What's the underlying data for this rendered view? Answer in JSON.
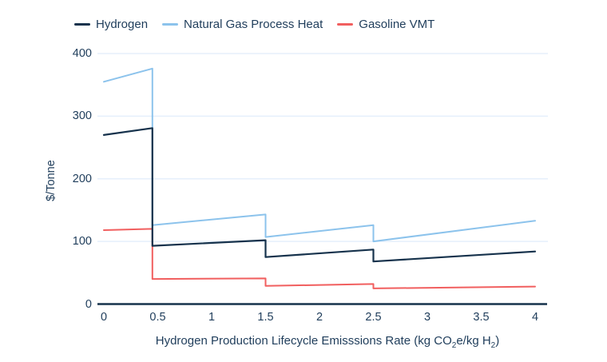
{
  "colors": {
    "text": "#1f3d5b",
    "axis": "#16324c",
    "gridline": "#e5effb",
    "background": "#ffffff"
  },
  "chart_data": {
    "type": "line",
    "title": "",
    "ylabel": "$/Tonne",
    "xlabel_parts": [
      {
        "t": "Hydrogen Production Lifecycle Emisssions Rate (kg CO"
      },
      {
        "t": "2",
        "sub": true
      },
      {
        "t": "e/kg H"
      },
      {
        "t": "2",
        "sub": true
      },
      {
        "t": ")"
      }
    ],
    "xlim": [
      0,
      4
    ],
    "ylim": [
      0,
      400
    ],
    "x_ticks": [
      {
        "v": 0,
        "label": "0"
      },
      {
        "v": 0.5,
        "label": "0.5"
      },
      {
        "v": 1,
        "label": "1"
      },
      {
        "v": 1.5,
        "label": "1.5"
      },
      {
        "v": 2,
        "label": "2"
      },
      {
        "v": 2.5,
        "label": "2.5"
      },
      {
        "v": 3,
        "label": "3"
      },
      {
        "v": 3.5,
        "label": "3.5"
      },
      {
        "v": 4,
        "label": "4"
      }
    ],
    "y_ticks": [
      {
        "v": 0,
        "label": "0"
      },
      {
        "v": 100,
        "label": "100"
      },
      {
        "v": 200,
        "label": "200"
      },
      {
        "v": 300,
        "label": "300"
      },
      {
        "v": 400,
        "label": "400"
      }
    ],
    "grid": "horizontal-only",
    "legend_position": "top-left",
    "step_thresholds": [
      0.45,
      1.5,
      2.5
    ],
    "series": [
      {
        "name": "Natural Gas Process Heat",
        "color": "#8cc3ec",
        "stroke_width": 2,
        "points": [
          [
            0,
            355
          ],
          [
            0.45,
            376
          ],
          [
            0.45,
            126
          ],
          [
            1.5,
            143
          ],
          [
            1.5,
            107
          ],
          [
            2.5,
            126
          ],
          [
            2.5,
            100
          ],
          [
            4,
            133
          ]
        ]
      },
      {
        "name": "Gasoline VMT",
        "color": "#f15f5f",
        "stroke_width": 2,
        "points": [
          [
            0,
            118
          ],
          [
            0.45,
            120
          ],
          [
            0.45,
            40
          ],
          [
            1.5,
            41
          ],
          [
            1.5,
            29
          ],
          [
            2.5,
            32
          ],
          [
            2.5,
            25
          ],
          [
            4,
            28
          ]
        ]
      },
      {
        "name": "Hydrogen",
        "color": "#16324c",
        "stroke_width": 2.2,
        "points": [
          [
            0,
            270
          ],
          [
            0.45,
            281
          ],
          [
            0.45,
            93
          ],
          [
            1.5,
            102
          ],
          [
            1.5,
            75
          ],
          [
            2.5,
            87
          ],
          [
            2.5,
            68
          ],
          [
            4,
            84
          ]
        ]
      }
    ],
    "legend_order": [
      "Hydrogen",
      "Natural Gas Process Heat",
      "Gasoline VMT"
    ]
  }
}
